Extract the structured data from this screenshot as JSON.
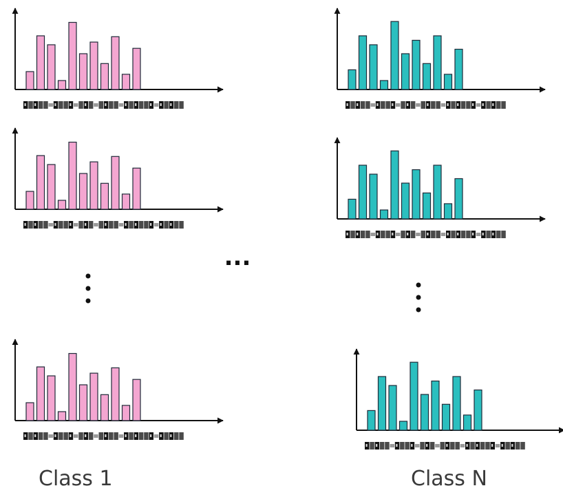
{
  "labels": {
    "class_first": "Class 1",
    "class_last": "Class N",
    "horizontal_ellipsis": "...",
    "vertical_ellipsis": "⋮"
  },
  "colors": {
    "pink_fill": "#f4a6d1",
    "teal_fill": "#2bbfbf",
    "bar_stroke": "#1f2a38",
    "axis": "#111111"
  },
  "chart_data": [
    {
      "type": "bar",
      "class": "Class 1",
      "values": [
        2,
        6,
        5,
        1,
        7.5,
        4,
        5.3,
        2.9,
        5.9,
        1.7,
        4.6
      ]
    },
    {
      "type": "bar",
      "class": "Class 1",
      "values": [
        2,
        6,
        5,
        1,
        7.5,
        4,
        5.3,
        2.9,
        5.9,
        1.7,
        4.6
      ]
    },
    {
      "type": "bar",
      "class": "Class 1",
      "values": [
        2,
        6,
        5,
        1,
        7.5,
        4,
        5.3,
        2.9,
        5.9,
        1.7,
        4.6
      ]
    },
    {
      "type": "bar",
      "class": "Class N",
      "values": [
        2.2,
        6,
        5,
        1,
        7.6,
        4,
        5.5,
        2.9,
        6,
        1.7,
        4.5
      ]
    },
    {
      "type": "bar",
      "class": "Class N",
      "values": [
        2.2,
        6,
        5,
        1,
        7.6,
        4,
        5.5,
        2.9,
        6,
        1.7,
        4.5
      ]
    },
    {
      "type": "bar",
      "class": "Class N",
      "values": [
        2.2,
        6,
        5,
        1,
        7.6,
        4,
        5.5,
        2.9,
        6,
        1.7,
        4.5
      ]
    }
  ]
}
